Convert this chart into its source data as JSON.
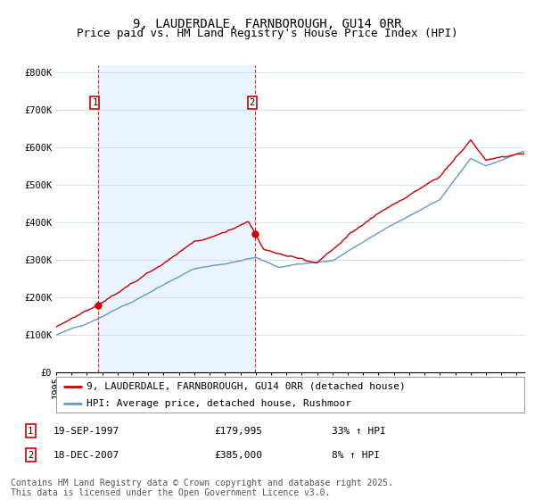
{
  "title": "9, LAUDERDALE, FARNBOROUGH, GU14 0RR",
  "subtitle": "Price paid vs. HM Land Registry's House Price Index (HPI)",
  "ylabel_ticks": [
    "£0",
    "£100K",
    "£200K",
    "£300K",
    "£400K",
    "£500K",
    "£600K",
    "£700K",
    "£800K"
  ],
  "ytick_values": [
    0,
    100000,
    200000,
    300000,
    400000,
    500000,
    600000,
    700000,
    800000
  ],
  "ylim": [
    0,
    820000
  ],
  "xlim_start": 1995.0,
  "xlim_end": 2025.5,
  "sale1_date": 1997.72,
  "sale1_price": 179995,
  "sale2_date": 2007.96,
  "sale2_price": 385000,
  "line1_color": "#cc0000",
  "line2_color": "#6699cc",
  "vline_color": "#cc0000",
  "marker_color": "#cc0000",
  "shade_color": "#ddeeff",
  "background_color": "#ffffff",
  "grid_color": "#ccddee",
  "legend_label1": "9, LAUDERDALE, FARNBOROUGH, GU14 0RR (detached house)",
  "legend_label2": "HPI: Average price, detached house, Rushmoor",
  "sale1_text": "19-SEP-1997",
  "sale1_price_text": "£179,995",
  "sale1_hpi_text": "33% ↑ HPI",
  "sale2_text": "18-DEC-2007",
  "sale2_price_text": "£385,000",
  "sale2_hpi_text": "8% ↑ HPI",
  "footer": "Contains HM Land Registry data © Crown copyright and database right 2025.\nThis data is licensed under the Open Government Licence v3.0.",
  "title_fontsize": 10,
  "subtitle_fontsize": 9,
  "tick_fontsize": 7.5,
  "legend_fontsize": 8,
  "annot_fontsize": 8,
  "footer_fontsize": 7
}
